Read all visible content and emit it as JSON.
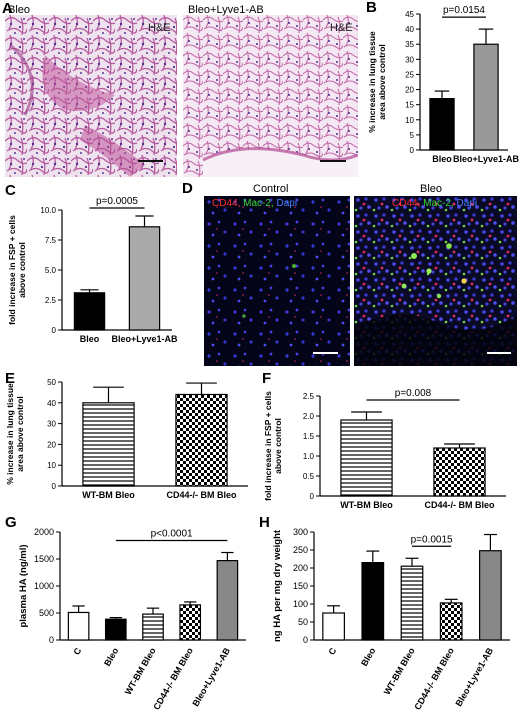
{
  "panel_a": {
    "letter": "A",
    "left_label": "Bleo",
    "right_label": "Bleo+Lyve1-AB",
    "stain_left": "H&E",
    "stain_right": "H&E"
  },
  "panel_d": {
    "letter": "D",
    "left_title": "Control",
    "right_title": "Bleo",
    "stain_cd44": "CD44,",
    "stain_mac2": "Mac-2,",
    "stain_dapi": "Dapi"
  },
  "chart_data": [
    {
      "id": "B",
      "letter": "B",
      "type": "bar",
      "categories": [
        "Bleo",
        "Bleo+Lyve1-AB"
      ],
      "values": [
        17,
        35
      ],
      "errors": [
        2.5,
        5
      ],
      "fills": [
        "#000000",
        "#999999"
      ],
      "patterns": [
        "solid",
        "solid"
      ],
      "ylabel_lines": [
        "% increase in lung tissue",
        "area above control"
      ],
      "ylim": [
        0,
        45
      ],
      "yticks": [
        0,
        5,
        10,
        15,
        20,
        25,
        30,
        35,
        40,
        45
      ],
      "ytick_labels": [
        "0",
        "5",
        "10",
        "15",
        "20",
        "25",
        "30",
        "35",
        "40",
        "45"
      ],
      "significance": [
        {
          "from": 0,
          "to": 1,
          "label": "p=0.0154"
        }
      ]
    },
    {
      "id": "C",
      "letter": "C",
      "type": "bar",
      "categories": [
        "Bleo",
        "Bleo+Lyve1-AB"
      ],
      "values": [
        3.1,
        8.6
      ],
      "errors": [
        0.25,
        0.9
      ],
      "fills": [
        "#000000",
        "#aaaaaa"
      ],
      "patterns": [
        "solid",
        "solid"
      ],
      "ylabel_lines": [
        "fold increase in FSP + cells",
        "above control"
      ],
      "ylim": [
        0,
        10
      ],
      "yticks": [
        0,
        2.5,
        5,
        7.5,
        10
      ],
      "ytick_labels": [
        "0",
        "2.5",
        "5.0",
        "7.5",
        "10.0"
      ],
      "significance": [
        {
          "from": 0,
          "to": 1,
          "label": "p=0.0005"
        }
      ]
    },
    {
      "id": "E",
      "letter": "E",
      "type": "bar",
      "categories": [
        "WT-BM Bleo",
        "CD44-/- BM Bleo"
      ],
      "values": [
        40,
        44
      ],
      "errors": [
        7.5,
        5.5
      ],
      "fills": [
        "#ffffff",
        "#ffffff"
      ],
      "patterns": [
        "hstripe",
        "check"
      ],
      "ylabel_lines": [
        "% increase in lung tissue",
        "area above control"
      ],
      "ylim": [
        0,
        50
      ],
      "yticks": [
        0,
        10,
        20,
        30,
        40,
        50
      ],
      "ytick_labels": [
        "0",
        "10",
        "20",
        "30",
        "40",
        "50"
      ],
      "significance": []
    },
    {
      "id": "F",
      "letter": "F",
      "type": "bar",
      "categories": [
        "WT-BM Bleo",
        "CD44-/- BM Bleo"
      ],
      "values": [
        1.9,
        1.2
      ],
      "errors": [
        0.2,
        0.1
      ],
      "fills": [
        "#ffffff",
        "#ffffff"
      ],
      "patterns": [
        "hstripe",
        "check"
      ],
      "ylabel_lines": [
        "fold increase in FSP + cells",
        "above control"
      ],
      "ylim": [
        0,
        2.5
      ],
      "yticks": [
        0,
        0.5,
        1,
        1.5,
        2,
        2.5
      ],
      "ytick_labels": [
        "0",
        "0.5",
        "1.0",
        "1.5",
        "2.0",
        "2.5"
      ],
      "significance": [
        {
          "from": 0,
          "to": 1,
          "label": "p=0.008"
        }
      ]
    },
    {
      "id": "G",
      "letter": "G",
      "type": "bar",
      "categories": [
        "C",
        "Bleo",
        "WT-BM Bleo",
        "CD44-/- BM Bleo",
        "Bleo+Lyve1-AB"
      ],
      "values": [
        510,
        385,
        480,
        650,
        1470
      ],
      "errors": [
        120,
        30,
        110,
        55,
        150
      ],
      "fills": [
        "#ffffff",
        "#000000",
        "#ffffff",
        "#ffffff",
        "#888888"
      ],
      "patterns": [
        "solid",
        "solid",
        "hstripe",
        "check",
        "solid"
      ],
      "ylabel_lines": [
        "plasma HA (ng/ml)"
      ],
      "ylim": [
        0,
        2000
      ],
      "yticks": [
        0,
        500,
        1000,
        1500,
        2000
      ],
      "ytick_labels": [
        "0",
        "500",
        "1000",
        "1500",
        "2000"
      ],
      "significance": [
        {
          "from": 1,
          "to": 4,
          "label": "p<0.0001"
        }
      ]
    },
    {
      "id": "H",
      "letter": "H",
      "type": "bar",
      "categories": [
        "C",
        "Bleo",
        "WT-BM Bleo",
        "CD44-/- BM Bleo",
        "Bleo+Lyve1-AB"
      ],
      "values": [
        75,
        215,
        205,
        103,
        248
      ],
      "errors": [
        20,
        32,
        22,
        10,
        45
      ],
      "fills": [
        "#ffffff",
        "#000000",
        "#ffffff",
        "#ffffff",
        "#888888"
      ],
      "patterns": [
        "solid",
        "solid",
        "hstripe",
        "check",
        "solid"
      ],
      "ylabel_lines": [
        "ng HA per mg dry weight"
      ],
      "ylim": [
        0,
        300
      ],
      "yticks": [
        0,
        50,
        100,
        150,
        200,
        250,
        300
      ],
      "ytick_labels": [
        "0",
        "50",
        "100",
        "150",
        "200",
        "250",
        "300"
      ],
      "significance": [
        {
          "from": 2,
          "to": 3,
          "label": "p=0.0015"
        }
      ]
    }
  ]
}
